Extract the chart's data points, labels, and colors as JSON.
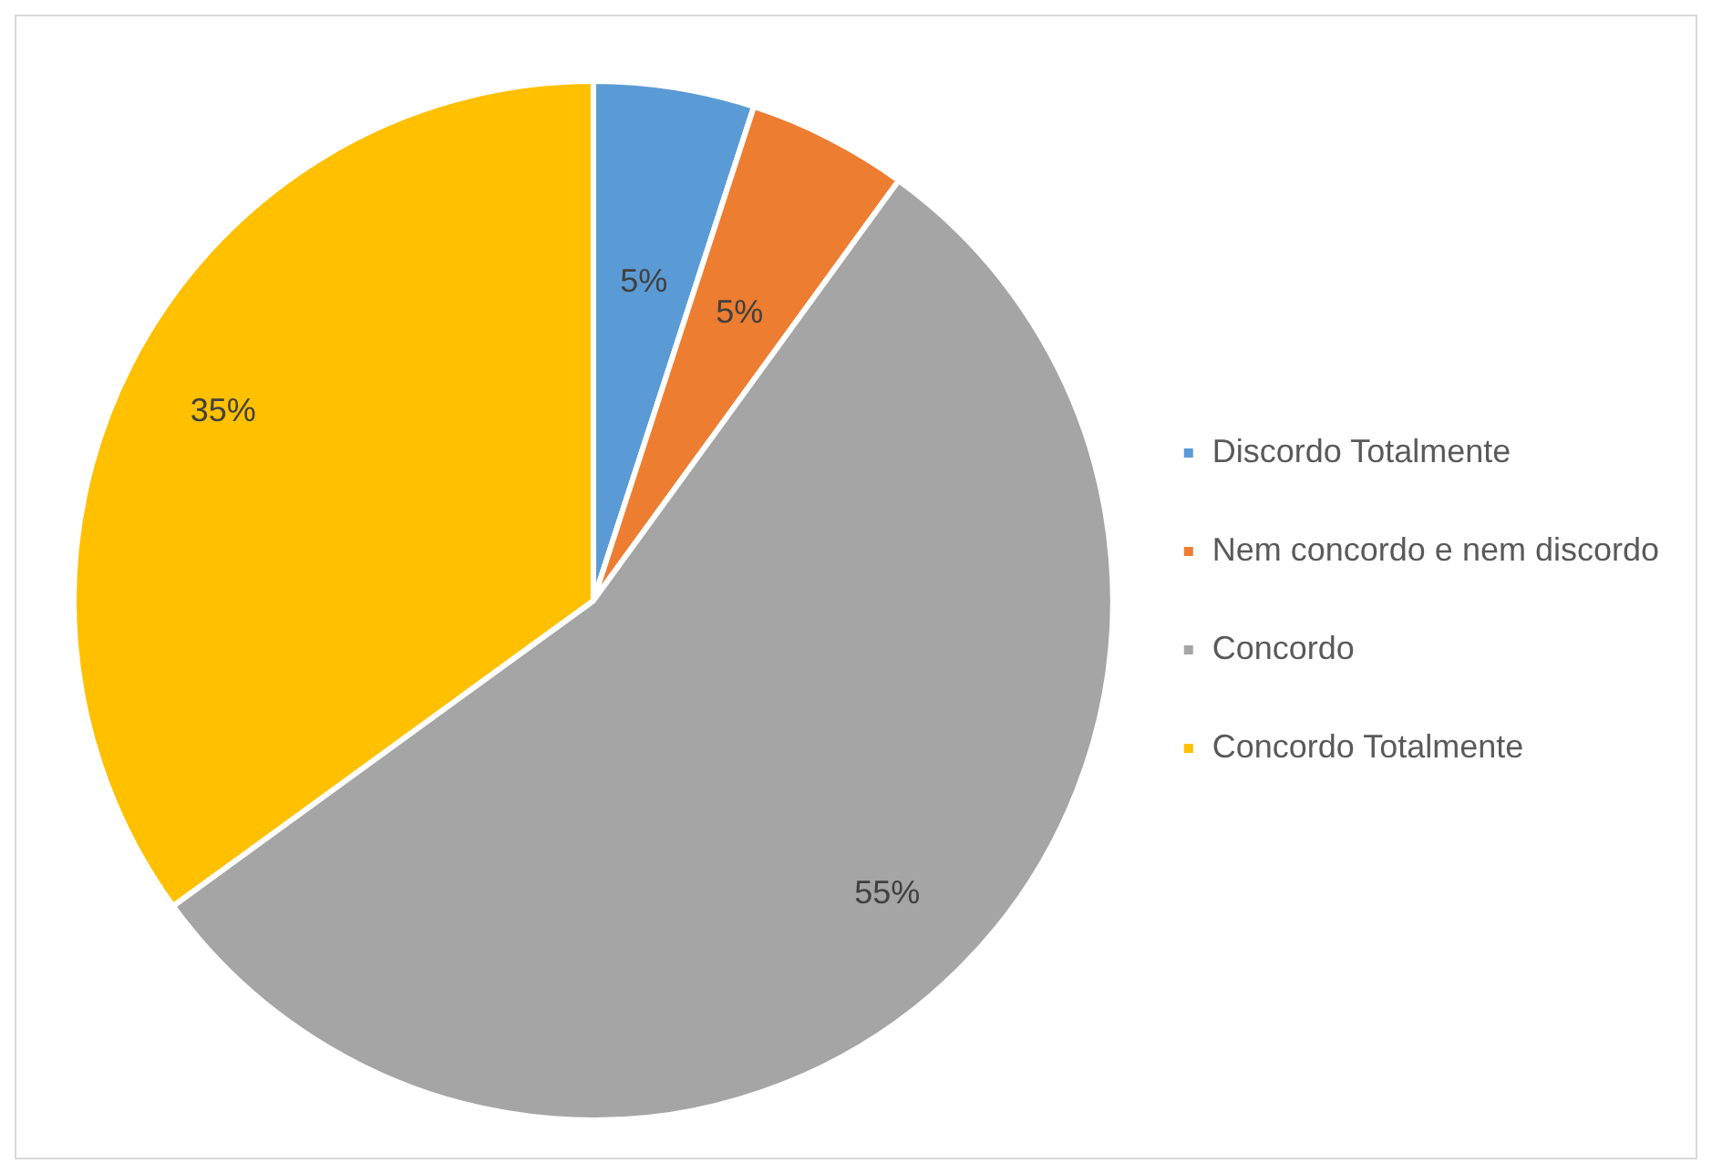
{
  "chart_data": {
    "type": "pie",
    "categories": [
      "Discordo Totalmente",
      "Nem concordo e nem discordo",
      "Concordo",
      "Concordo Totalmente"
    ],
    "values": [
      5,
      5,
      55,
      35
    ],
    "colors": [
      "#5b9bd5",
      "#ed7d31",
      "#a5a5a5",
      "#ffc000"
    ],
    "value_labels": [
      "5%",
      "5%",
      "55%",
      "35%"
    ],
    "legend": "right"
  }
}
